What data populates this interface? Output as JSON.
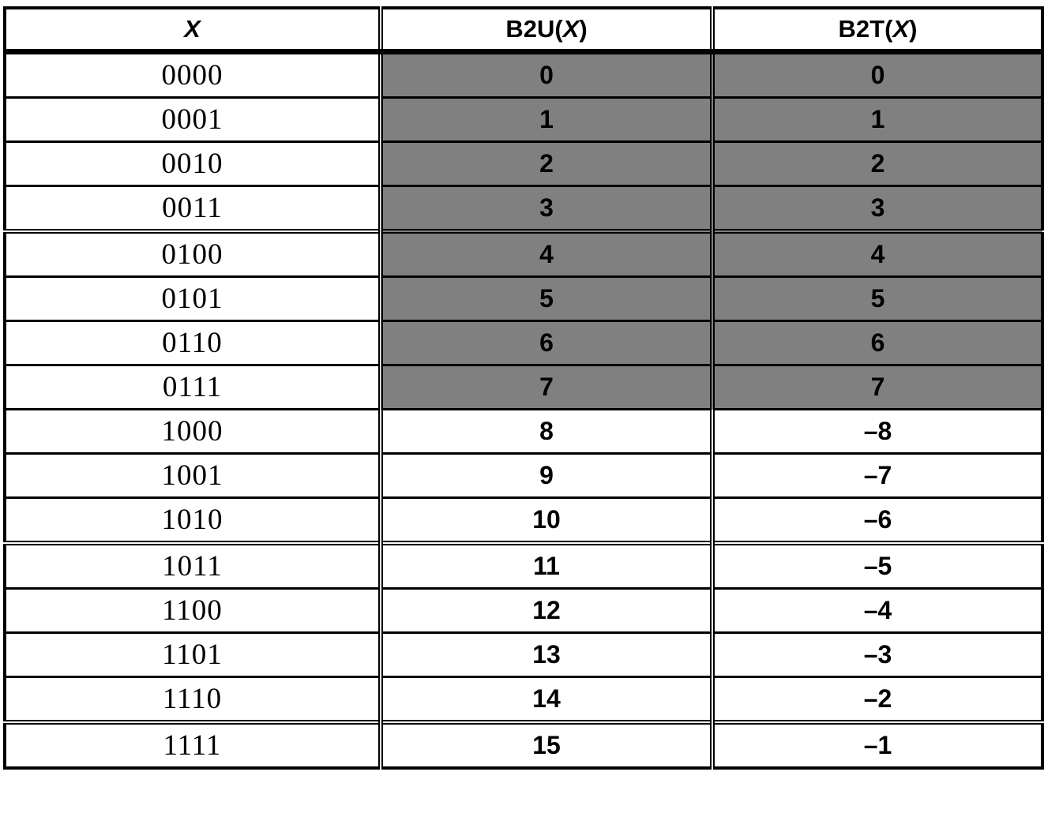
{
  "header": {
    "col_x": "X",
    "col_b2u_prefix": "B2U(",
    "col_b2u_var": "X",
    "col_b2u_suffix": ")",
    "col_b2t_prefix": "B2T(",
    "col_b2t_var": "X",
    "col_b2t_suffix": ")"
  },
  "rows": [
    {
      "x": "0000",
      "b2u": "0",
      "b2t": "0"
    },
    {
      "x": "0001",
      "b2u": "1",
      "b2t": "1"
    },
    {
      "x": "0010",
      "b2u": "2",
      "b2t": "2"
    },
    {
      "x": "0011",
      "b2u": "3",
      "b2t": "3"
    },
    {
      "x": "0100",
      "b2u": "4",
      "b2t": "4"
    },
    {
      "x": "0101",
      "b2u": "5",
      "b2t": "5"
    },
    {
      "x": "0110",
      "b2u": "6",
      "b2t": "6"
    },
    {
      "x": "0111",
      "b2u": "7",
      "b2t": "7"
    },
    {
      "x": "1000",
      "b2u": "8",
      "b2t": "–8"
    },
    {
      "x": "1001",
      "b2u": "9",
      "b2t": "–7"
    },
    {
      "x": "1010",
      "b2u": "10",
      "b2t": "–6"
    },
    {
      "x": "1011",
      "b2u": "11",
      "b2t": "–5"
    },
    {
      "x": "1100",
      "b2u": "12",
      "b2t": "–4"
    },
    {
      "x": "1101",
      "b2u": "13",
      "b2t": "–3"
    },
    {
      "x": "1110",
      "b2u": "14",
      "b2t": "–2"
    },
    {
      "x": "1111",
      "b2u": "15",
      "b2t": "–1"
    }
  ],
  "colors": {
    "shaded_cell": "#808080",
    "border": "#000000",
    "background": "#ffffff"
  }
}
